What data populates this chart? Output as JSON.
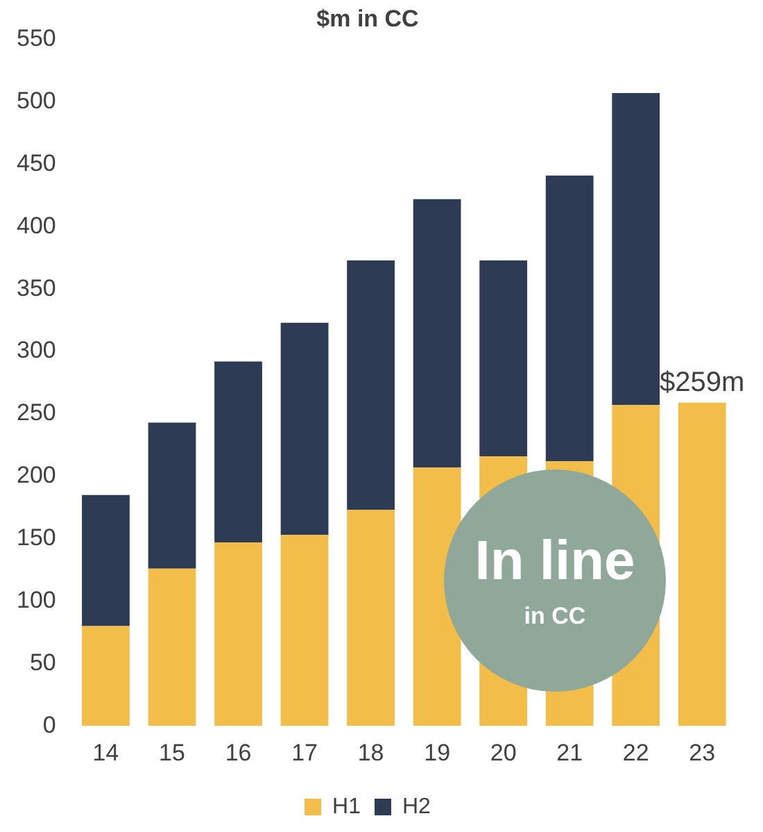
{
  "chart_data": {
    "type": "bar",
    "title": "$m in CC",
    "stacked": true,
    "categories": [
      "14",
      "15",
      "16",
      "17",
      "18",
      "19",
      "20",
      "21",
      "22",
      "23"
    ],
    "series": [
      {
        "name": "H1",
        "color": "#f2bd48",
        "values": [
          80,
          126,
          147,
          153,
          173,
          207,
          216,
          212,
          257,
          259
        ],
        "value_labels": [
          null,
          null,
          null,
          null,
          null,
          null,
          null,
          null,
          null,
          "$259m"
        ]
      },
      {
        "name": "H2",
        "color": "#2e3b55",
        "values": [
          105,
          117,
          145,
          170,
          200,
          215,
          157,
          229,
          250,
          null
        ]
      }
    ],
    "ylim": [
      0,
      550
    ],
    "yticks": [
      0,
      50,
      100,
      150,
      200,
      250,
      300,
      350,
      400,
      450,
      500,
      550
    ],
    "grid": false,
    "legend": "bottom",
    "annotations": [
      "In line",
      "in CC"
    ]
  }
}
